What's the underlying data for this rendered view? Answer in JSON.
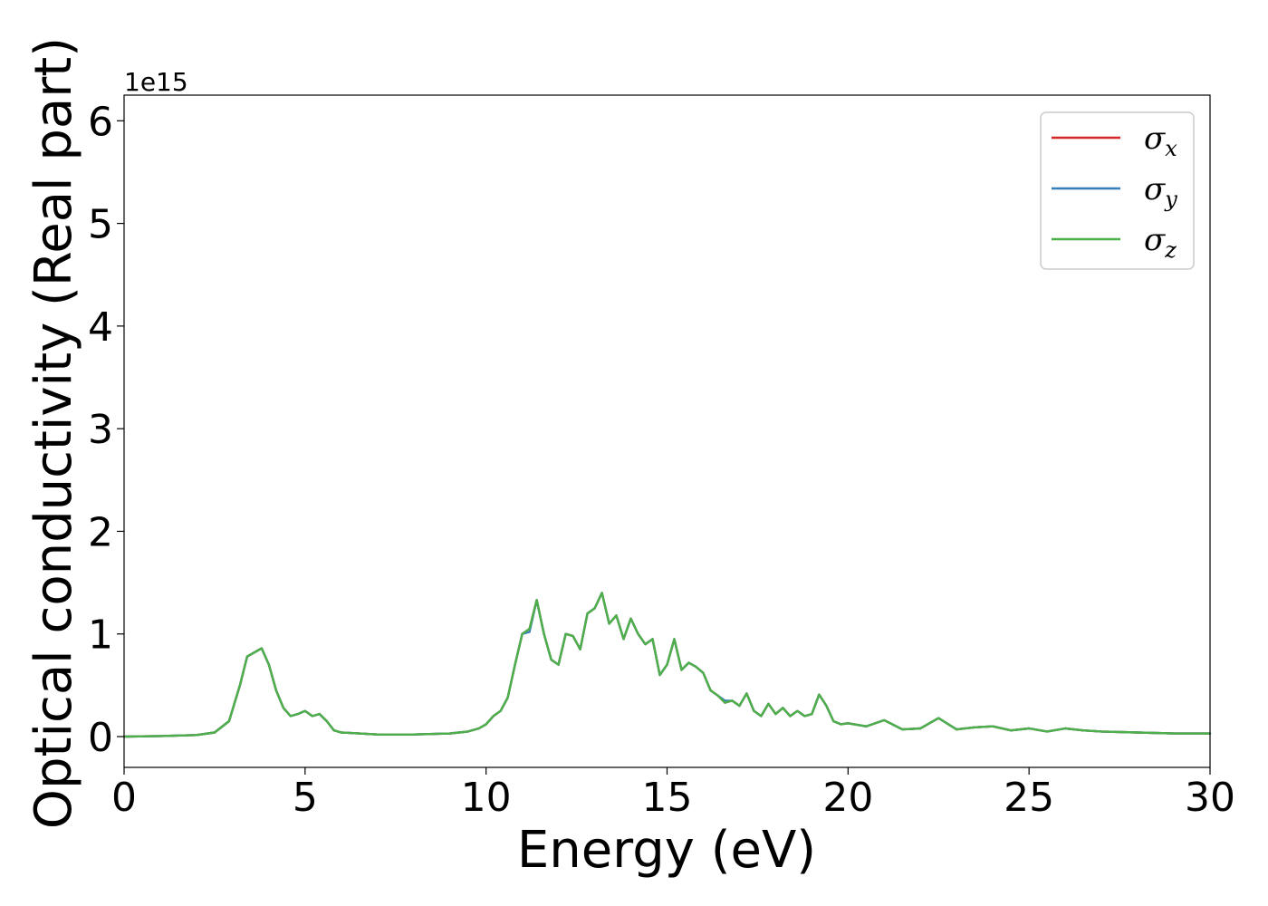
{
  "chart_data": {
    "type": "line",
    "xlabel": "Energy (eV)",
    "ylabel": "Optical conductivity (Real part)",
    "y_offset_label": "1e15",
    "xlim": [
      0,
      30
    ],
    "ylim": [
      -0.3,
      6.25
    ],
    "xticks": [
      0,
      5,
      10,
      15,
      20,
      25,
      30
    ],
    "yticks": [
      0,
      1,
      2,
      3,
      4,
      5,
      6
    ],
    "grid": false,
    "legend_position": "top-right",
    "series": [
      {
        "name": "σx",
        "symbol": "σ",
        "subscript": "x",
        "color": "#d62728",
        "x": [
          0,
          1,
          2,
          2.5,
          2.9,
          3.2,
          3.4,
          3.6,
          3.8,
          4.0,
          4.2,
          4.4,
          4.6,
          4.8,
          5.0,
          5.2,
          5.4,
          5.6,
          5.8,
          6,
          7,
          8,
          9,
          9.5,
          9.8,
          10,
          10.2,
          10.4,
          10.6,
          10.8,
          11.0,
          11.2,
          11.4,
          11.6,
          11.8,
          12.0,
          12.2,
          12.4,
          12.6,
          12.8,
          13.0,
          13.2,
          13.4,
          13.6,
          13.8,
          14.0,
          14.2,
          14.4,
          14.6,
          14.8,
          15.0,
          15.2,
          15.4,
          15.6,
          15.8,
          16.0,
          16.2,
          16.4,
          16.6,
          16.8,
          17.0,
          17.2,
          17.4,
          17.6,
          17.8,
          18.0,
          18.2,
          18.4,
          18.6,
          18.8,
          19.0,
          19.2,
          19.4,
          19.6,
          19.8,
          20.0,
          20.5,
          21.0,
          21.5,
          22.0,
          22.5,
          23.0,
          23.5,
          24.0,
          24.5,
          25.0,
          25.5,
          26.0,
          26.5,
          27.0,
          28.0,
          29.0,
          30.0
        ],
        "y": [
          0,
          0.005,
          0.015,
          0.04,
          0.15,
          0.5,
          0.78,
          0.82,
          0.86,
          0.7,
          0.45,
          0.28,
          0.2,
          0.22,
          0.25,
          0.2,
          0.22,
          0.15,
          0.06,
          0.04,
          0.02,
          0.02,
          0.03,
          0.05,
          0.08,
          0.12,
          0.2,
          0.25,
          0.38,
          0.7,
          1.0,
          1.05,
          1.33,
          1.0,
          0.75,
          0.7,
          1.0,
          0.98,
          0.85,
          1.2,
          1.25,
          1.4,
          1.1,
          1.18,
          0.95,
          1.15,
          1.0,
          0.9,
          0.95,
          0.6,
          0.7,
          0.95,
          0.65,
          0.72,
          0.68,
          0.62,
          0.45,
          0.4,
          0.33,
          0.35,
          0.3,
          0.42,
          0.25,
          0.2,
          0.32,
          0.22,
          0.28,
          0.2,
          0.25,
          0.2,
          0.22,
          0.41,
          0.3,
          0.15,
          0.12,
          0.13,
          0.1,
          0.16,
          0.07,
          0.08,
          0.18,
          0.07,
          0.09,
          0.1,
          0.06,
          0.08,
          0.05,
          0.08,
          0.06,
          0.05,
          0.04,
          0.03,
          0.03
        ]
      },
      {
        "name": "σy",
        "symbol": "σ",
        "subscript": "y",
        "color": "#377eb8",
        "x": [
          0,
          1,
          2,
          2.5,
          2.9,
          3.2,
          3.4,
          3.6,
          3.8,
          4.0,
          4.2,
          4.4,
          4.6,
          4.8,
          5.0,
          5.2,
          5.4,
          5.6,
          5.8,
          6,
          7,
          8,
          9,
          9.5,
          9.8,
          10,
          10.2,
          10.4,
          10.6,
          10.8,
          11.0,
          11.2,
          11.4,
          11.6,
          11.8,
          12.0,
          12.2,
          12.4,
          12.6,
          12.8,
          13.0,
          13.2,
          13.4,
          13.6,
          13.8,
          14.0,
          14.2,
          14.4,
          14.6,
          14.8,
          15.0,
          15.2,
          15.4,
          15.6,
          15.8,
          16.0,
          16.2,
          16.4,
          16.6,
          16.8,
          17.0,
          17.2,
          17.4,
          17.6,
          17.8,
          18.0,
          18.2,
          18.4,
          18.6,
          18.8,
          19.0,
          19.2,
          19.4,
          19.6,
          19.8,
          20.0,
          20.5,
          21.0,
          21.5,
          22.0,
          22.5,
          23.0,
          23.5,
          24.0,
          24.5,
          25.0,
          25.5,
          26.0,
          26.5,
          27.0,
          28.0,
          29.0,
          30.0
        ],
        "y": [
          0,
          0.005,
          0.015,
          0.04,
          0.15,
          0.5,
          0.78,
          0.82,
          0.86,
          0.7,
          0.45,
          0.28,
          0.2,
          0.22,
          0.25,
          0.2,
          0.22,
          0.15,
          0.06,
          0.04,
          0.02,
          0.02,
          0.03,
          0.05,
          0.08,
          0.12,
          0.2,
          0.25,
          0.38,
          0.7,
          1.0,
          1.02,
          1.33,
          1.0,
          0.75,
          0.7,
          1.0,
          0.98,
          0.85,
          1.2,
          1.25,
          1.4,
          1.1,
          1.18,
          0.95,
          1.15,
          1.0,
          0.9,
          0.95,
          0.6,
          0.7,
          0.95,
          0.65,
          0.72,
          0.68,
          0.62,
          0.45,
          0.4,
          0.35,
          0.35,
          0.3,
          0.42,
          0.25,
          0.2,
          0.32,
          0.22,
          0.28,
          0.2,
          0.25,
          0.2,
          0.22,
          0.41,
          0.3,
          0.15,
          0.12,
          0.13,
          0.1,
          0.16,
          0.07,
          0.08,
          0.18,
          0.07,
          0.09,
          0.1,
          0.06,
          0.08,
          0.05,
          0.08,
          0.06,
          0.05,
          0.04,
          0.03,
          0.03
        ]
      },
      {
        "name": "σz",
        "symbol": "σ",
        "subscript": "z",
        "color": "#4daf4a",
        "x": [
          0,
          1,
          2,
          2.5,
          2.9,
          3.2,
          3.4,
          3.6,
          3.8,
          4.0,
          4.2,
          4.4,
          4.6,
          4.8,
          5.0,
          5.2,
          5.4,
          5.6,
          5.8,
          6,
          7,
          8,
          9,
          9.5,
          9.8,
          10,
          10.2,
          10.4,
          10.6,
          10.8,
          11.0,
          11.2,
          11.4,
          11.6,
          11.8,
          12.0,
          12.2,
          12.4,
          12.6,
          12.8,
          13.0,
          13.2,
          13.4,
          13.6,
          13.8,
          14.0,
          14.2,
          14.4,
          14.6,
          14.8,
          15.0,
          15.2,
          15.4,
          15.6,
          15.8,
          16.0,
          16.2,
          16.4,
          16.6,
          16.8,
          17.0,
          17.2,
          17.4,
          17.6,
          17.8,
          18.0,
          18.2,
          18.4,
          18.6,
          18.8,
          19.0,
          19.2,
          19.4,
          19.6,
          19.8,
          20.0,
          20.5,
          21.0,
          21.5,
          22.0,
          22.5,
          23.0,
          23.5,
          24.0,
          24.5,
          25.0,
          25.5,
          26.0,
          26.5,
          27.0,
          28.0,
          29.0,
          30.0
        ],
        "y": [
          0,
          0.005,
          0.015,
          0.04,
          0.15,
          0.5,
          0.78,
          0.82,
          0.86,
          0.7,
          0.45,
          0.28,
          0.2,
          0.22,
          0.25,
          0.2,
          0.22,
          0.15,
          0.06,
          0.04,
          0.02,
          0.02,
          0.03,
          0.05,
          0.08,
          0.12,
          0.2,
          0.25,
          0.38,
          0.7,
          1.0,
          1.05,
          1.33,
          1.0,
          0.75,
          0.7,
          1.0,
          0.98,
          0.85,
          1.2,
          1.25,
          1.4,
          1.1,
          1.18,
          0.95,
          1.15,
          1.0,
          0.9,
          0.95,
          0.6,
          0.7,
          0.95,
          0.65,
          0.72,
          0.68,
          0.62,
          0.45,
          0.4,
          0.33,
          0.35,
          0.3,
          0.42,
          0.25,
          0.2,
          0.32,
          0.22,
          0.28,
          0.2,
          0.25,
          0.2,
          0.22,
          0.41,
          0.3,
          0.15,
          0.12,
          0.13,
          0.1,
          0.16,
          0.07,
          0.08,
          0.18,
          0.07,
          0.09,
          0.1,
          0.06,
          0.08,
          0.05,
          0.08,
          0.06,
          0.05,
          0.04,
          0.03,
          0.03
        ]
      }
    ]
  }
}
